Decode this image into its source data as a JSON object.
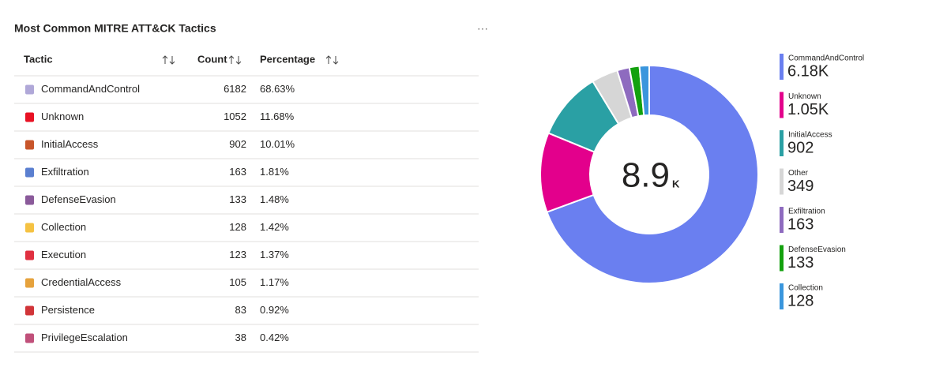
{
  "title": "Most Common MITRE ATT&CK Tactics",
  "menu": "···",
  "table": {
    "columns": [
      "Tactic",
      "Count",
      "Percentage"
    ],
    "rows": [
      [
        "CommandAndControl",
        "6182",
        "68.63%"
      ],
      [
        "Unknown",
        "1052",
        "11.68%"
      ],
      [
        "InitialAccess",
        "902",
        "10.01%"
      ],
      [
        "Exfiltration",
        "163",
        "1.81%"
      ],
      [
        "DefenseEvasion",
        "133",
        "1.48%"
      ],
      [
        "Collection",
        "128",
        "1.42%"
      ],
      [
        "Execution",
        "123",
        "1.37%"
      ],
      [
        "CredentialAccess",
        "105",
        "1.17%"
      ],
      [
        "Persistence",
        "83",
        "0.92%"
      ],
      [
        "PrivilegeEscalation",
        "38",
        "0.42%"
      ]
    ]
  },
  "chart_data": {
    "type": "donut",
    "center_value": "8.9",
    "center_unit": "K",
    "categories": [
      "CommandAndControl",
      "Unknown",
      "InitialAccess",
      "Other",
      "Exfiltration",
      "DefenseEvasion",
      "Collection"
    ],
    "values": [
      6182,
      1052,
      902,
      349,
      163,
      133,
      128
    ],
    "value_labels": [
      "6.18K",
      "1.05K",
      "902",
      "349",
      "163",
      "133",
      "128"
    ],
    "colors": [
      "#6a7ff0",
      "#e3008c",
      "#2aa0a4",
      "#d6d6d6",
      "#8e6bbf",
      "#13a10e",
      "#3a96dd"
    ]
  }
}
